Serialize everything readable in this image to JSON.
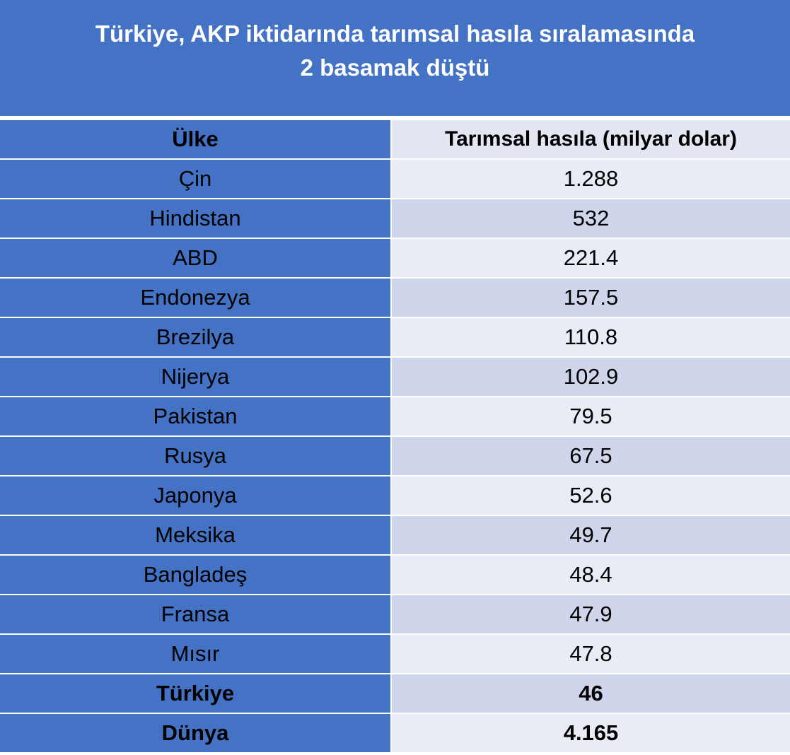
{
  "header": {
    "title_lines": [
      "Türkiye, AKP iktidarında tarımsal hasıla sıralamasında",
      "2 basamak düştü"
    ]
  },
  "table": {
    "columns": [
      "Ülke",
      "Tarımsal hasıla (milyar dolar)"
    ],
    "rows": [
      [
        "Çin",
        "1.288"
      ],
      [
        "Hindistan",
        "532"
      ],
      [
        "ABD",
        "221.4"
      ],
      [
        "Endonezya",
        "157.5"
      ],
      [
        "Brezilya",
        "110.8"
      ],
      [
        "Nijerya",
        "102.9"
      ],
      [
        "Pakistan",
        "79.5"
      ],
      [
        "Rusya",
        "67.5"
      ],
      [
        "Japonya",
        "52.6"
      ],
      [
        "Meksika",
        "49.7"
      ],
      [
        "Bangladeş",
        "48.4"
      ],
      [
        "Fransa",
        "47.9"
      ],
      [
        "Mısır",
        "47.8"
      ],
      [
        "Türkiye",
        "46"
      ],
      [
        "Dünya",
        "4.165"
      ]
    ]
  }
}
